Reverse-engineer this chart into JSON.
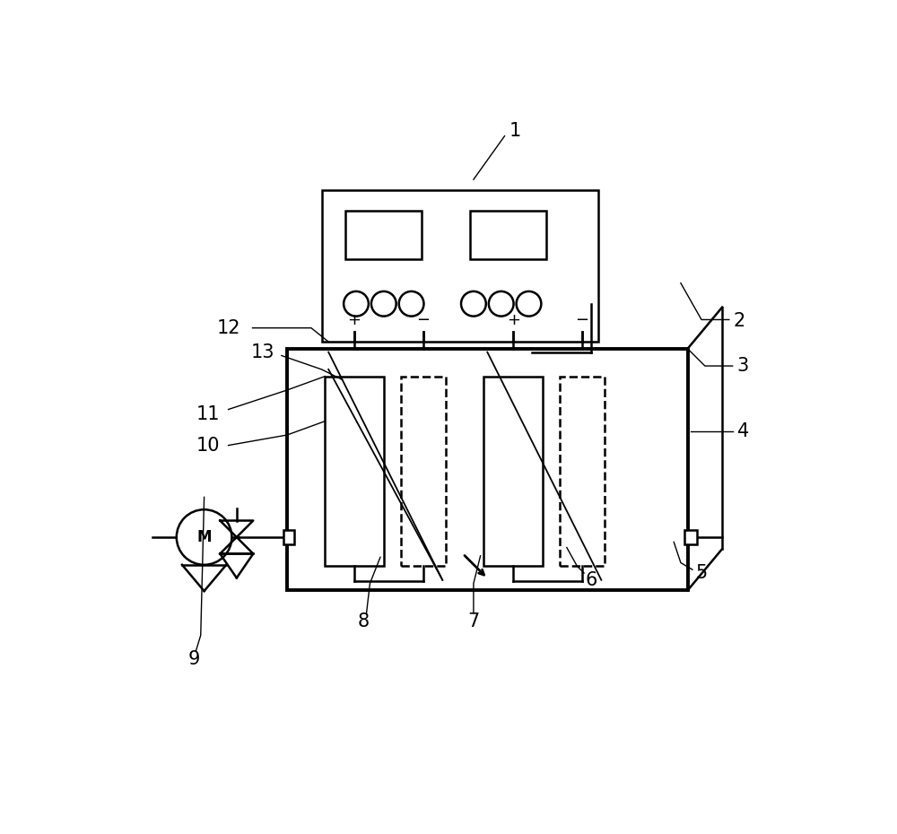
{
  "bg_color": "#ffffff",
  "line_color": "#000000",
  "text_color": "#000000",
  "fig_width": 10.0,
  "fig_height": 9.3
}
